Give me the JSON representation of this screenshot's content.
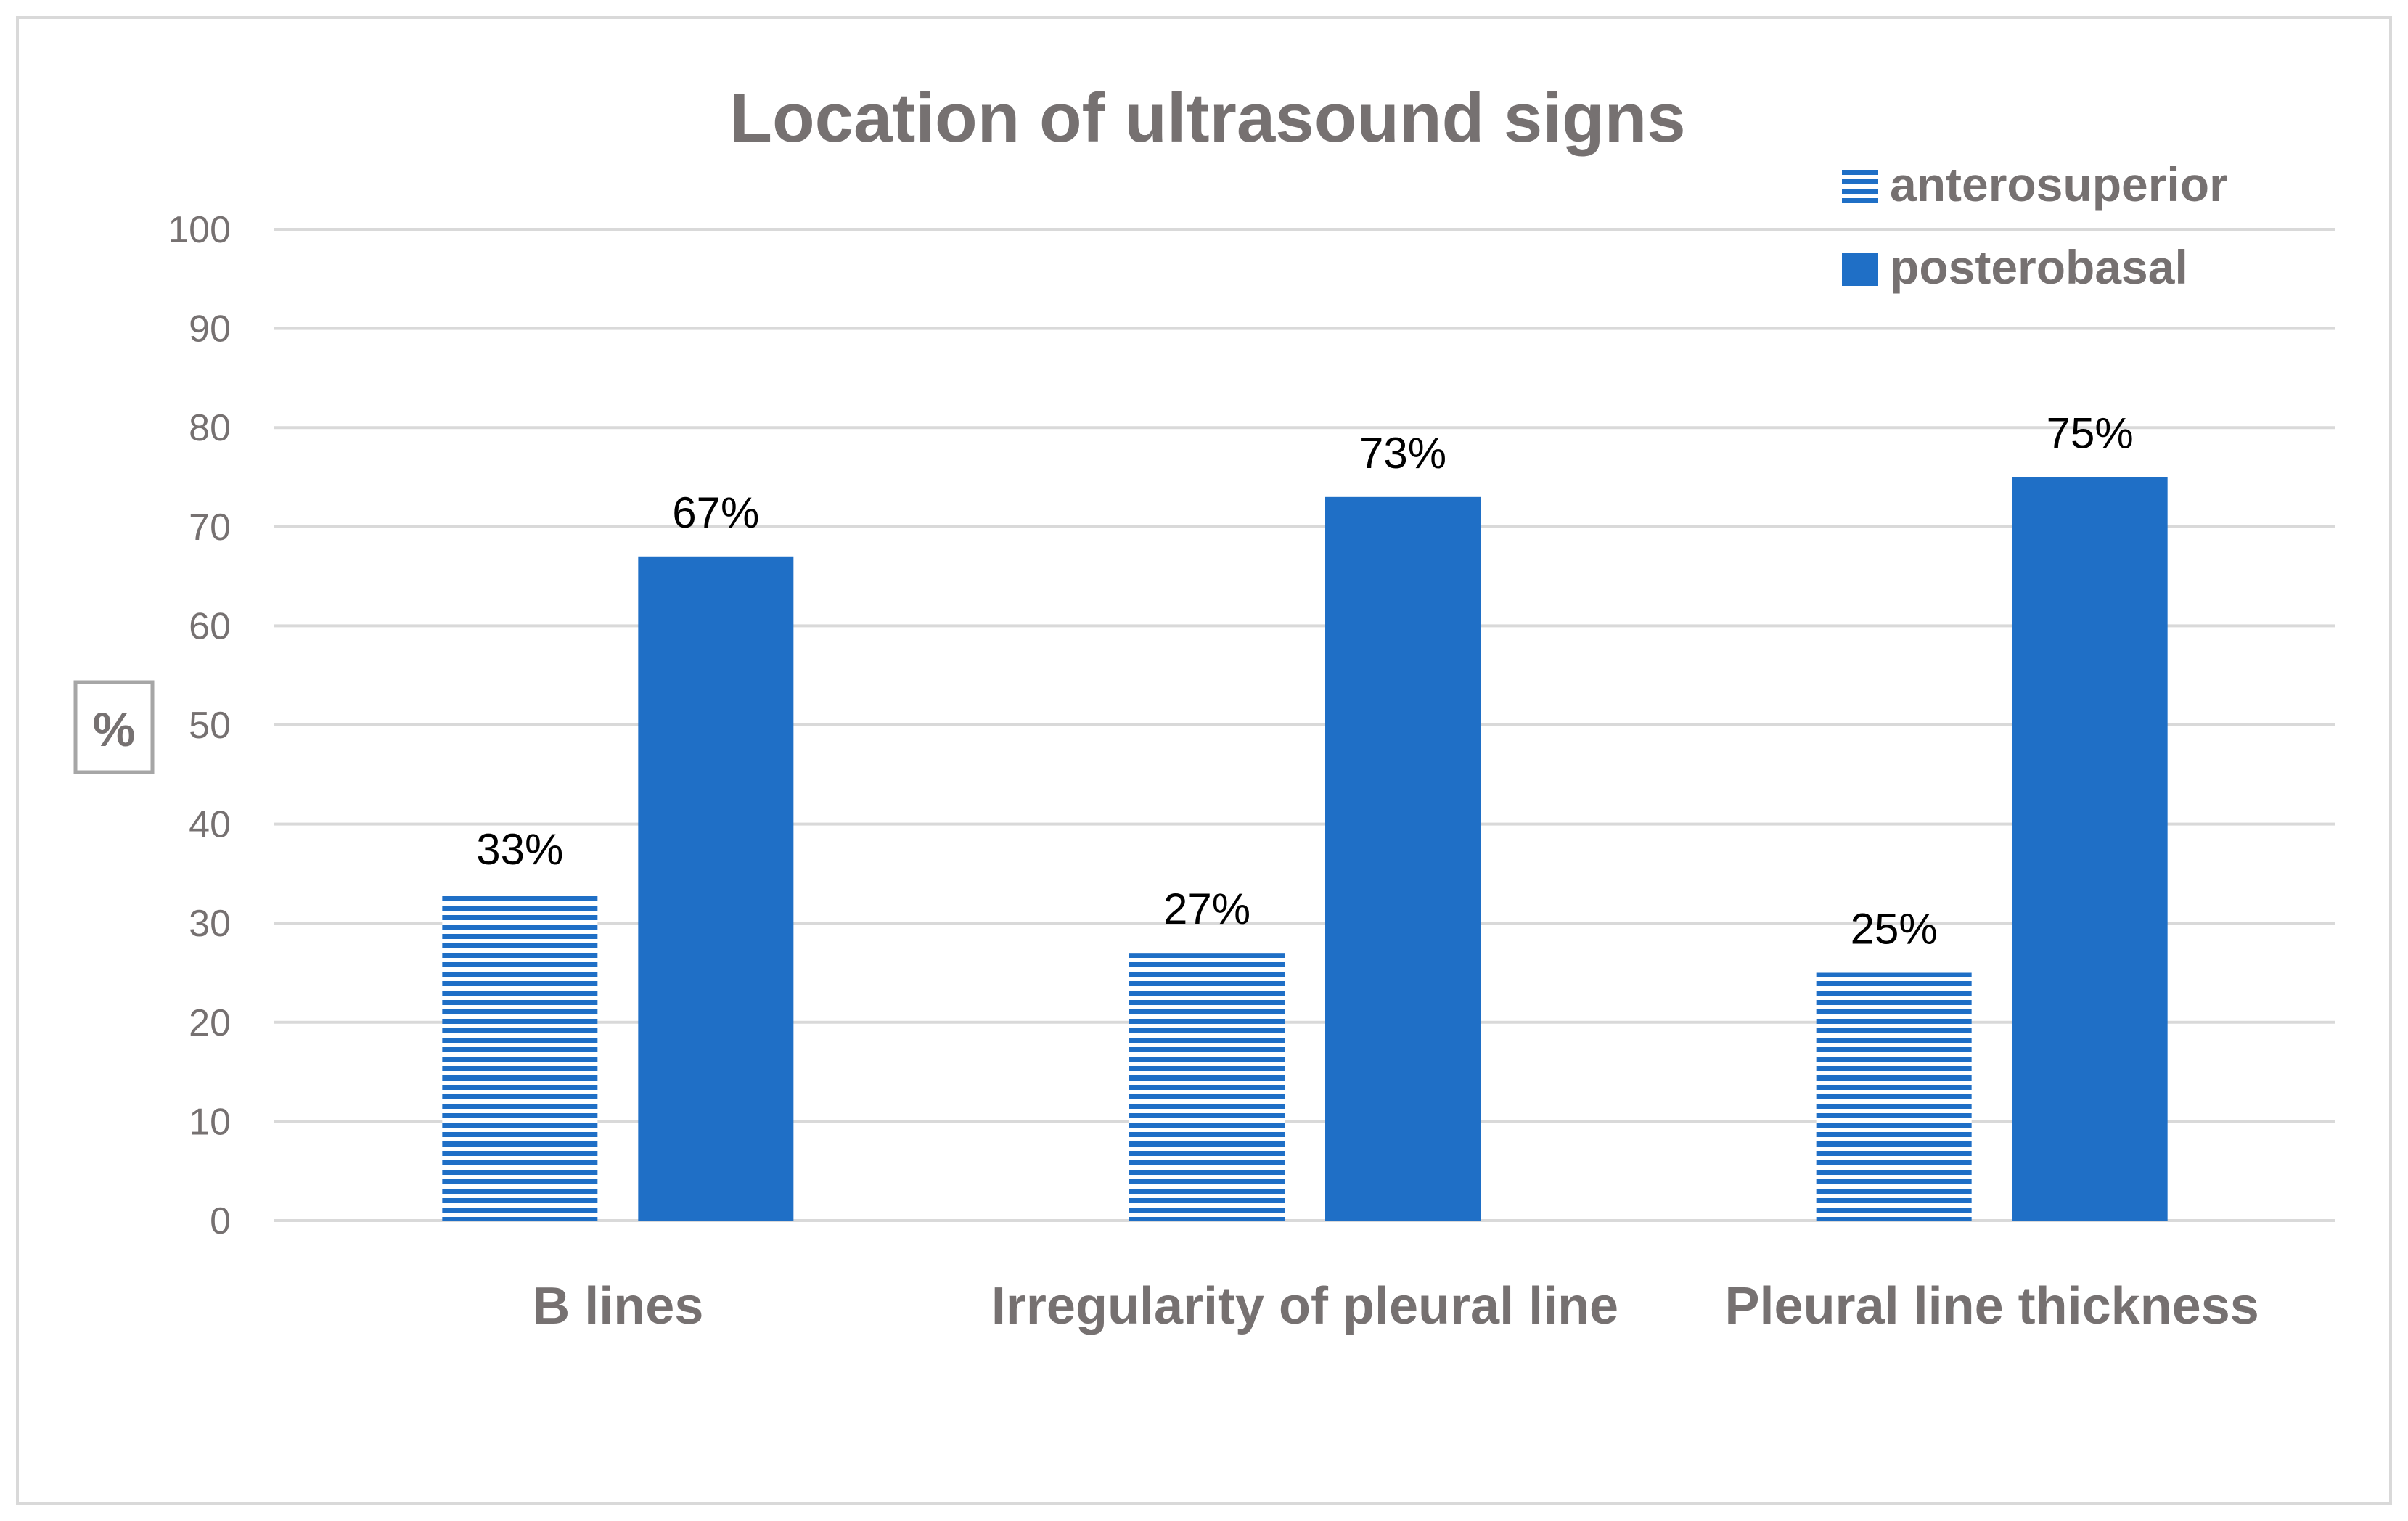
{
  "chart_data": {
    "type": "bar",
    "title": "Location of ultrasound signs",
    "ylabel": "%",
    "xlabel": "",
    "ylim": [
      0,
      100
    ],
    "yticks": [
      0,
      10,
      20,
      30,
      40,
      50,
      60,
      70,
      80,
      90,
      100
    ],
    "categories": [
      "B lines",
      "Irregularity of pleural line",
      "Pleural line thickness"
    ],
    "series": [
      {
        "name": "anterosuperior",
        "values": [
          33,
          27,
          25
        ],
        "labels": [
          "33%",
          "27%",
          "25%"
        ],
        "color": "#1f6fc6",
        "pattern": "horizontal-stripes"
      },
      {
        "name": "posterobasal",
        "values": [
          67,
          73,
          75
        ],
        "labels": [
          "67%",
          "73%",
          "75%"
        ],
        "color": "#1f6fc6",
        "pattern": "solid"
      }
    ],
    "grid": true,
    "legend": "top-right"
  }
}
